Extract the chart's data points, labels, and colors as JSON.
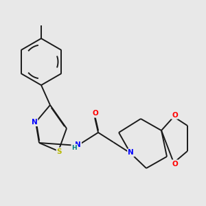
{
  "bg_color": "#e8e8e8",
  "bond_color": "#1a1a1a",
  "atom_colors": {
    "N": "#0000ff",
    "O": "#ff0000",
    "S": "#b8b800",
    "H": "#008080",
    "C": "#1a1a1a"
  },
  "lw": 1.4,
  "figsize": [
    3.0,
    3.0
  ],
  "dpi": 100
}
